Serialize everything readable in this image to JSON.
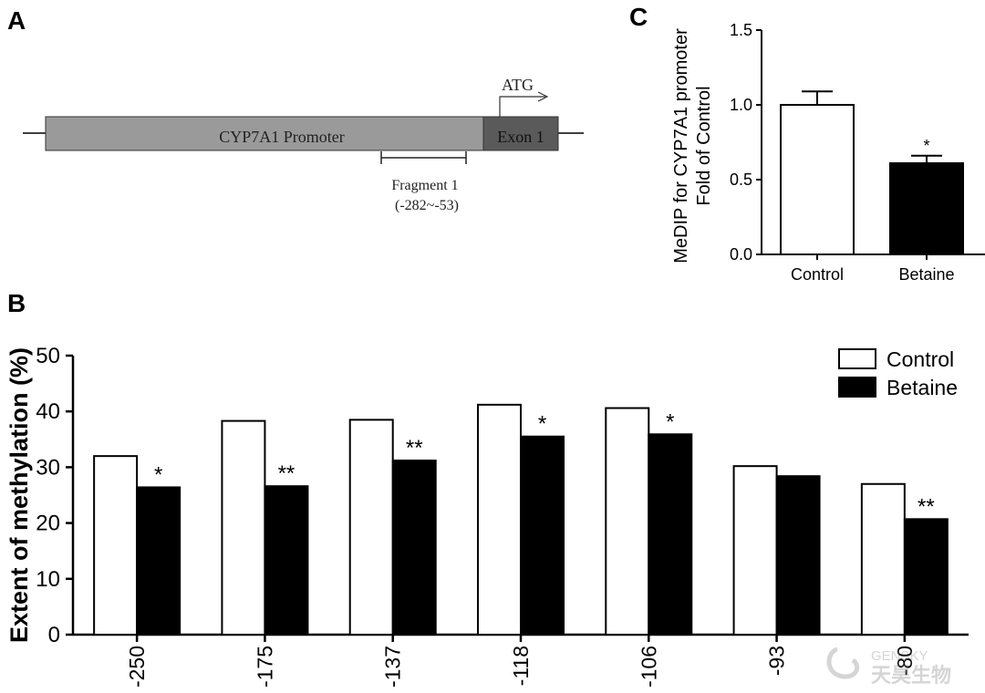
{
  "panels": {
    "a": {
      "letter": "A"
    },
    "b": {
      "letter": "B"
    },
    "c": {
      "letter": "C"
    }
  },
  "diagram": {
    "promoter_label": "CYP7A1 Promoter",
    "exon_label": "Exon 1",
    "atg_label": "ATG",
    "fragment_label": "Fragment 1",
    "fragment_range": "(-282~-53)"
  },
  "watermark": {
    "latin": "GENSKY",
    "chinese": "天昊生物"
  },
  "colors": {
    "control": "#ffffff",
    "betaine": "#000000",
    "promoter": "#9a9a9a",
    "exon": "#5a5a5a"
  },
  "chart_data": [
    {
      "id": "panel-b",
      "type": "bar",
      "title": "",
      "ylabel": "Extent of methylation (%)",
      "xlabel": "",
      "ylim": [
        0,
        50
      ],
      "yticks": [
        "0",
        "10",
        "20",
        "30",
        "40",
        "50"
      ],
      "categories": [
        "-250",
        "-175",
        "-137",
        "-118",
        "-106",
        "-93",
        "-80"
      ],
      "series": [
        {
          "name": "Control",
          "values": [
            32,
            38.3,
            38.5,
            41.2,
            40.6,
            30.2,
            27
          ]
        },
        {
          "name": "Betaine",
          "values": [
            26.4,
            26.6,
            31.2,
            35.5,
            35.9,
            28.4,
            20.7
          ]
        }
      ],
      "significance": [
        "*",
        "**",
        "**",
        "*",
        "*",
        "",
        "**"
      ],
      "legend": "top-right"
    },
    {
      "id": "panel-c",
      "type": "bar",
      "title": "",
      "ylabel_lines": [
        "MeDIP for CYP7A1 promoter",
        "Fold of Control"
      ],
      "xlabel": "",
      "ylim": [
        0,
        1.5
      ],
      "yticks": [
        "0.0",
        "0.5",
        "1.0",
        "1.5"
      ],
      "categories": [
        "Control",
        "Betaine"
      ],
      "values": [
        1.0,
        0.61
      ],
      "errors": [
        0.09,
        0.05
      ],
      "significance": [
        "",
        "*"
      ]
    }
  ]
}
